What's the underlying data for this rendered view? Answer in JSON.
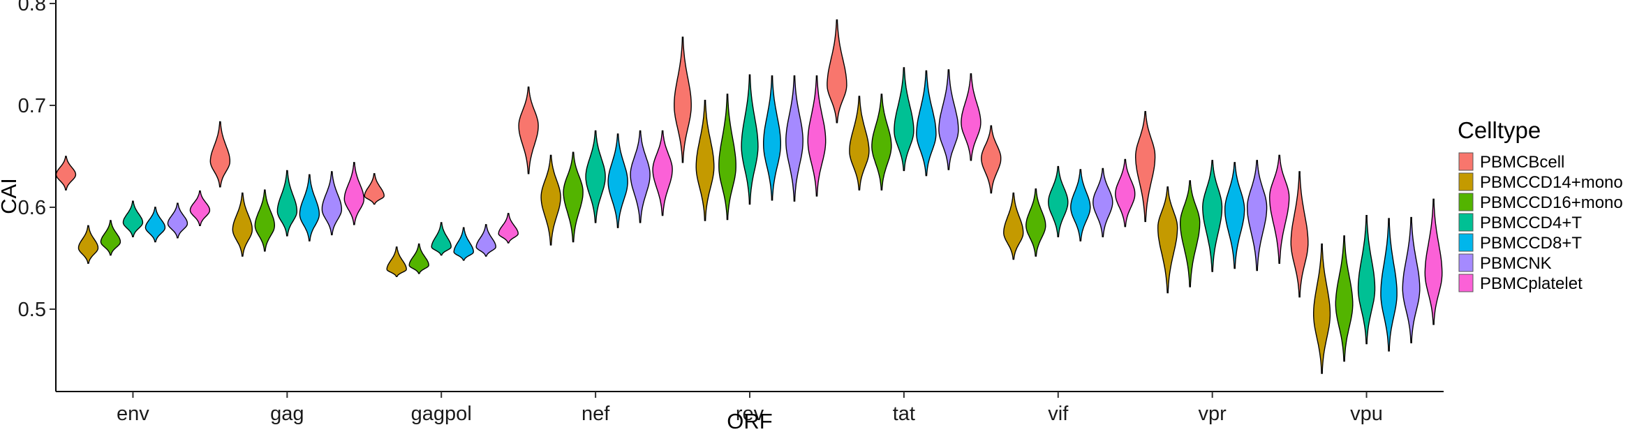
{
  "chart_data": {
    "type": "violin",
    "xlabel": "ORF",
    "ylabel": "CAI",
    "ylim": [
      0.42,
      0.8
    ],
    "yticks": [
      0.5,
      0.6,
      0.7,
      0.8
    ],
    "ytick_labels": [
      "0.5",
      "0.6",
      "0.7",
      "0.8"
    ],
    "categories": [
      "env",
      "gag",
      "gagpol",
      "nef",
      "rev",
      "tat",
      "vif",
      "vpr",
      "vpu"
    ],
    "legend": {
      "title": "Celltype",
      "position": "right"
    },
    "series": [
      {
        "name": "PBMCBcell",
        "color": "#F8766D",
        "stats": [
          {
            "min": 0.617,
            "median": 0.632,
            "max": 0.65
          },
          {
            "min": 0.62,
            "median": 0.645,
            "max": 0.684
          },
          {
            "min": 0.603,
            "median": 0.611,
            "max": 0.633
          },
          {
            "min": 0.633,
            "median": 0.68,
            "max": 0.718
          },
          {
            "min": 0.644,
            "median": 0.7,
            "max": 0.767
          },
          {
            "min": 0.683,
            "median": 0.72,
            "max": 0.784
          },
          {
            "min": 0.614,
            "median": 0.648,
            "max": 0.68
          },
          {
            "min": 0.586,
            "median": 0.65,
            "max": 0.694
          },
          {
            "min": 0.512,
            "median": 0.565,
            "max": 0.635
          }
        ]
      },
      {
        "name": "PBMCCD14+mono",
        "color": "#C49A00",
        "stats": [
          {
            "min": 0.545,
            "median": 0.56,
            "max": 0.582
          },
          {
            "min": 0.552,
            "median": 0.578,
            "max": 0.614
          },
          {
            "min": 0.532,
            "median": 0.539,
            "max": 0.561
          },
          {
            "min": 0.563,
            "median": 0.61,
            "max": 0.651
          },
          {
            "min": 0.587,
            "median": 0.64,
            "max": 0.705
          },
          {
            "min": 0.617,
            "median": 0.655,
            "max": 0.709
          },
          {
            "min": 0.549,
            "median": 0.575,
            "max": 0.614
          },
          {
            "min": 0.516,
            "median": 0.58,
            "max": 0.62
          },
          {
            "min": 0.437,
            "median": 0.495,
            "max": 0.564
          }
        ]
      },
      {
        "name": "PBMCCD16+mono",
        "color": "#53B400",
        "stats": [
          {
            "min": 0.553,
            "median": 0.566,
            "max": 0.587
          },
          {
            "min": 0.557,
            "median": 0.582,
            "max": 0.617
          },
          {
            "min": 0.535,
            "median": 0.543,
            "max": 0.564
          },
          {
            "min": 0.566,
            "median": 0.615,
            "max": 0.654
          },
          {
            "min": 0.588,
            "median": 0.64,
            "max": 0.711
          },
          {
            "min": 0.617,
            "median": 0.66,
            "max": 0.711
          },
          {
            "min": 0.552,
            "median": 0.582,
            "max": 0.618
          },
          {
            "min": 0.522,
            "median": 0.585,
            "max": 0.626
          },
          {
            "min": 0.449,
            "median": 0.505,
            "max": 0.572
          }
        ]
      },
      {
        "name": "PBMCCD4+T",
        "color": "#00C094",
        "stats": [
          {
            "min": 0.571,
            "median": 0.585,
            "max": 0.606
          },
          {
            "min": 0.572,
            "median": 0.596,
            "max": 0.636
          },
          {
            "min": 0.553,
            "median": 0.561,
            "max": 0.585
          },
          {
            "min": 0.585,
            "median": 0.63,
            "max": 0.675
          },
          {
            "min": 0.603,
            "median": 0.66,
            "max": 0.73
          },
          {
            "min": 0.636,
            "median": 0.675,
            "max": 0.737
          },
          {
            "min": 0.571,
            "median": 0.605,
            "max": 0.64
          },
          {
            "min": 0.537,
            "median": 0.6,
            "max": 0.646
          },
          {
            "min": 0.466,
            "median": 0.52,
            "max": 0.592
          }
        ]
      },
      {
        "name": "PBMCCD8+T",
        "color": "#00B6EB",
        "stats": [
          {
            "min": 0.566,
            "median": 0.58,
            "max": 0.6
          },
          {
            "min": 0.567,
            "median": 0.593,
            "max": 0.632
          },
          {
            "min": 0.548,
            "median": 0.556,
            "max": 0.58
          },
          {
            "min": 0.58,
            "median": 0.625,
            "max": 0.672
          },
          {
            "min": 0.607,
            "median": 0.662,
            "max": 0.729
          },
          {
            "min": 0.631,
            "median": 0.672,
            "max": 0.734
          },
          {
            "min": 0.567,
            "median": 0.6,
            "max": 0.637
          },
          {
            "min": 0.54,
            "median": 0.598,
            "max": 0.644
          },
          {
            "min": 0.459,
            "median": 0.515,
            "max": 0.589
          }
        ]
      },
      {
        "name": "PBMCNK",
        "color": "#A58AFF",
        "stats": [
          {
            "min": 0.57,
            "median": 0.584,
            "max": 0.604
          },
          {
            "min": 0.573,
            "median": 0.598,
            "max": 0.635
          },
          {
            "min": 0.552,
            "median": 0.561,
            "max": 0.583
          },
          {
            "min": 0.585,
            "median": 0.632,
            "max": 0.675
          },
          {
            "min": 0.606,
            "median": 0.665,
            "max": 0.729
          },
          {
            "min": 0.637,
            "median": 0.676,
            "max": 0.735
          },
          {
            "min": 0.571,
            "median": 0.605,
            "max": 0.638
          },
          {
            "min": 0.538,
            "median": 0.6,
            "max": 0.646
          },
          {
            "min": 0.467,
            "median": 0.52,
            "max": 0.59
          }
        ]
      },
      {
        "name": "PBMCplatelet",
        "color": "#FB61D7",
        "stats": [
          {
            "min": 0.582,
            "median": 0.597,
            "max": 0.616
          },
          {
            "min": 0.583,
            "median": 0.608,
            "max": 0.644
          },
          {
            "min": 0.565,
            "median": 0.574,
            "max": 0.594
          },
          {
            "min": 0.592,
            "median": 0.637,
            "max": 0.675
          },
          {
            "min": 0.611,
            "median": 0.665,
            "max": 0.729
          },
          {
            "min": 0.646,
            "median": 0.683,
            "max": 0.731
          },
          {
            "min": 0.581,
            "median": 0.613,
            "max": 0.647
          },
          {
            "min": 0.545,
            "median": 0.61,
            "max": 0.651
          },
          {
            "min": 0.485,
            "median": 0.535,
            "max": 0.608
          }
        ]
      }
    ]
  }
}
